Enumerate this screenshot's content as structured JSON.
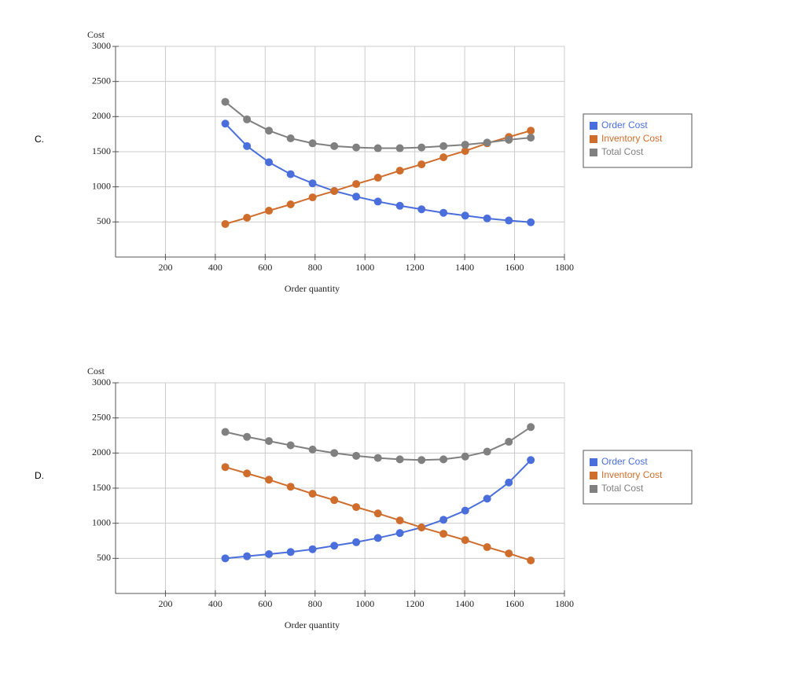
{
  "chart_data": [
    {
      "type": "line",
      "option": "C.",
      "y_label": "Cost",
      "x_label": "Order quantity",
      "x": [
        440,
        527,
        615,
        702,
        790,
        877,
        965,
        1052,
        1140,
        1227,
        1315,
        1402,
        1490,
        1577,
        1665
      ],
      "series": [
        {
          "name": "Order Cost",
          "color": "#4a6fdc",
          "values": [
            1900,
            1580,
            1350,
            1180,
            1050,
            940,
            860,
            790,
            730,
            680,
            630,
            590,
            550,
            520,
            495
          ]
        },
        {
          "name": "Inventory Cost",
          "color": "#cf6d2c",
          "values": [
            470,
            560,
            660,
            750,
            850,
            940,
            1040,
            1130,
            1230,
            1320,
            1420,
            1510,
            1620,
            1710,
            1800
          ]
        },
        {
          "name": "Total Cost",
          "color": "#808080",
          "values": [
            2210,
            1960,
            1800,
            1690,
            1620,
            1580,
            1560,
            1550,
            1550,
            1560,
            1580,
            1600,
            1630,
            1670,
            1700
          ]
        }
      ],
      "xlim": [
        0,
        1800
      ],
      "xticks": [
        200,
        400,
        600,
        800,
        1000,
        1200,
        1400,
        1600,
        1800
      ],
      "ylim": [
        0,
        3000
      ],
      "yticks": [
        500,
        1000,
        1500,
        2000,
        2500,
        3000
      ],
      "grid": true,
      "legend": "right"
    },
    {
      "type": "line",
      "option": "D.",
      "y_label": "Cost",
      "x_label": "Order quantity",
      "x": [
        440,
        527,
        615,
        702,
        790,
        877,
        965,
        1052,
        1140,
        1227,
        1315,
        1402,
        1490,
        1577,
        1665
      ],
      "series": [
        {
          "name": "Order Cost",
          "color": "#4a6fdc",
          "values": [
            500,
            530,
            560,
            590,
            630,
            680,
            730,
            790,
            860,
            940,
            1050,
            1180,
            1350,
            1580,
            1900
          ]
        },
        {
          "name": "Inventory Cost",
          "color": "#cf6d2c",
          "values": [
            1800,
            1710,
            1620,
            1520,
            1420,
            1330,
            1230,
            1140,
            1040,
            940,
            850,
            760,
            660,
            570,
            470
          ]
        },
        {
          "name": "Total Cost",
          "color": "#808080",
          "values": [
            2300,
            2230,
            2170,
            2110,
            2050,
            2000,
            1960,
            1930,
            1910,
            1900,
            1910,
            1950,
            2020,
            2160,
            2370
          ]
        }
      ],
      "xlim": [
        0,
        1800
      ],
      "xticks": [
        200,
        400,
        600,
        800,
        1000,
        1200,
        1400,
        1600,
        1800
      ],
      "ylim": [
        0,
        3000
      ],
      "yticks": [
        500,
        1000,
        1500,
        2000,
        2500,
        3000
      ],
      "grid": true,
      "legend": "right"
    }
  ]
}
